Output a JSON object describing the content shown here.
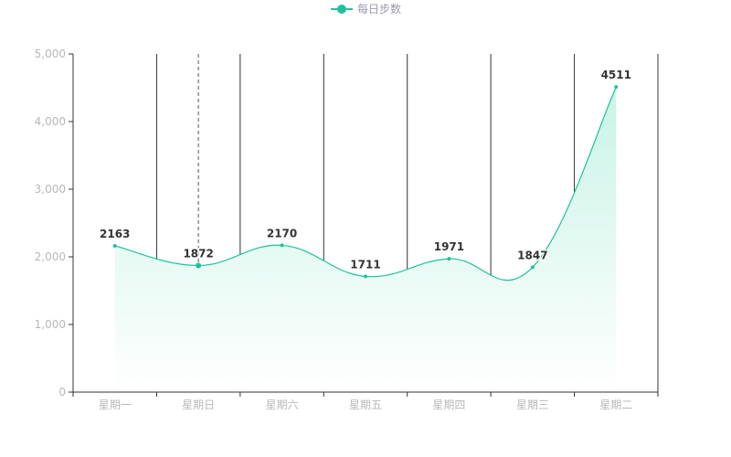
{
  "chart_data": {
    "type": "area",
    "categories": [
      "星期一",
      "星期日",
      "星期六",
      "星期五",
      "星期四",
      "星期三",
      "星期二"
    ],
    "series": [
      {
        "name": "每日步数",
        "values": [
          2163,
          1872,
          2170,
          1711,
          1971,
          1847,
          4511
        ]
      }
    ],
    "ylim": [
      0,
      5000
    ],
    "yticks": [
      "0",
      "1,000",
      "2,000",
      "3,000",
      "4,000",
      "5,000"
    ],
    "ytick_values": [
      0,
      1000,
      2000,
      3000,
      4000,
      5000
    ],
    "legend_position": "top-center",
    "smooth": true,
    "highlighted_category": "星期日",
    "colors": {
      "line": "#1fc29c",
      "area_top": "#c8f3e6",
      "area_bottom": "#ffffff",
      "axis": "#333333",
      "tick_text": "#b8b8b8",
      "legend_text": "#9a9ab0",
      "label_text": "#333333"
    }
  }
}
